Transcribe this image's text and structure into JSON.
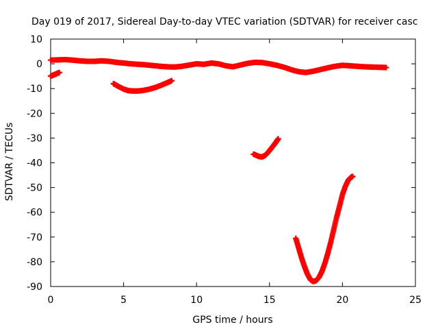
{
  "chart_data": {
    "type": "scatter",
    "title": "Day 019 of 2017, Sidereal Day-to-day VTEC variation (SDTVAR) for receiver casc",
    "xlabel": "GPS time / hours",
    "ylabel": "SDTVAR / TECUs",
    "xlim": [
      0,
      25
    ],
    "ylim": [
      -90,
      10
    ],
    "xticks": [
      0,
      5,
      10,
      15,
      20,
      25
    ],
    "yticks": [
      10,
      0,
      -10,
      -20,
      -30,
      -40,
      -50,
      -60,
      -70,
      -80,
      -90
    ],
    "grid": false,
    "legend": "none",
    "marker": "plus",
    "color": "#ff0000",
    "series": [
      {
        "x": [
          0.0,
          0.2,
          0.4,
          0.6
        ],
        "y": [
          -5.0,
          -4.5,
          -4.0,
          -3.5
        ]
      },
      {
        "x": [
          0.0,
          0.5,
          1.0,
          1.5,
          2.0,
          2.5,
          3.0,
          3.5,
          4.0,
          4.5,
          5.0,
          5.5,
          6.0,
          6.5,
          7.0,
          7.5,
          8.0,
          8.5,
          9.0,
          9.5,
          10.0,
          10.5,
          11.0,
          11.5,
          12.0,
          12.5,
          13.0,
          13.5,
          14.0,
          14.5,
          15.0,
          15.5,
          16.0,
          16.5,
          17.0,
          17.5,
          18.0,
          18.5,
          19.0,
          19.5,
          20.0,
          20.5,
          21.0,
          21.5,
          22.0,
          22.5,
          23.0
        ],
        "y": [
          1.5,
          1.6,
          1.7,
          1.5,
          1.2,
          1.0,
          1.0,
          1.2,
          1.0,
          0.6,
          0.3,
          0.0,
          -0.2,
          -0.4,
          -0.7,
          -1.0,
          -1.2,
          -1.3,
          -1.0,
          -0.5,
          0.0,
          -0.2,
          0.3,
          0.0,
          -0.8,
          -1.2,
          -0.5,
          0.2,
          0.6,
          0.5,
          0.0,
          -0.6,
          -1.4,
          -2.4,
          -3.2,
          -3.5,
          -3.0,
          -2.3,
          -1.6,
          -1.0,
          -0.6,
          -0.8,
          -1.0,
          -1.2,
          -1.3,
          -1.4,
          -1.5
        ]
      },
      {
        "x": [
          4.3,
          4.6,
          5.0,
          5.3,
          5.6,
          6.0,
          6.4,
          6.8,
          7.2,
          7.6,
          8.0,
          8.3
        ],
        "y": [
          -8.0,
          -9.0,
          -10.2,
          -10.8,
          -11.0,
          -11.0,
          -10.7,
          -10.2,
          -9.5,
          -8.6,
          -7.6,
          -6.8
        ]
      },
      {
        "x": [
          13.9,
          14.1,
          14.3,
          14.5,
          14.7,
          14.9,
          15.1,
          15.3,
          15.5,
          15.6
        ],
        "y": [
          -36.5,
          -37.0,
          -37.5,
          -37.6,
          -37.0,
          -35.8,
          -34.3,
          -32.8,
          -31.2,
          -30.3
        ]
      },
      {
        "x": [
          16.8,
          17.0,
          17.2,
          17.4,
          17.6,
          17.8,
          18.0,
          18.2,
          18.4,
          18.6,
          18.8,
          19.0,
          19.2,
          19.4,
          19.6,
          19.8,
          20.0,
          20.2,
          20.4,
          20.6,
          20.7
        ],
        "y": [
          -70.5,
          -74.5,
          -78.5,
          -82.0,
          -85.0,
          -87.2,
          -88.0,
          -87.6,
          -86.2,
          -83.8,
          -80.5,
          -76.5,
          -72.0,
          -67.0,
          -62.0,
          -57.5,
          -52.8,
          -49.5,
          -47.0,
          -45.8,
          -45.5
        ]
      }
    ]
  }
}
